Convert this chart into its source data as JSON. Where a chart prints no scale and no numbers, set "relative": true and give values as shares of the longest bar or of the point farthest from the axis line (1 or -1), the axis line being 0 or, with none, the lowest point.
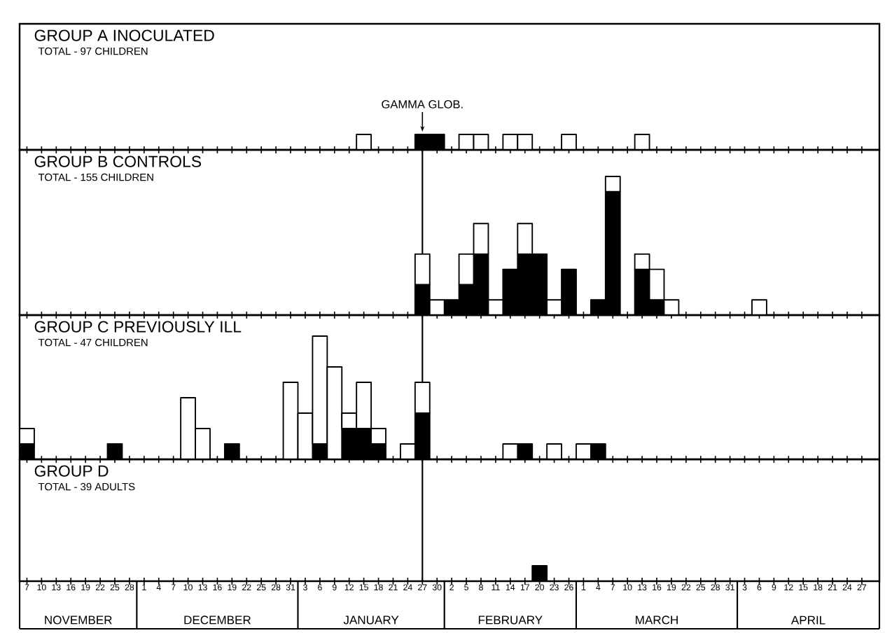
{
  "chart_data": [
    {
      "type": "bar",
      "stacked": true,
      "relative": true,
      "title": "GROUP A INOCULATED",
      "subtitle": "TOTAL - 97 CHILDREN",
      "tick_labels": false,
      "categories": [
        "7",
        "10",
        "13",
        "16",
        "19",
        "22",
        "25",
        "28",
        "1",
        "4",
        "7",
        "10",
        "13",
        "16",
        "19",
        "22",
        "25",
        "28",
        "31",
        "3",
        "6",
        "9",
        "12",
        "15",
        "18",
        "21",
        "24",
        "27",
        "30",
        "2",
        "5",
        "8",
        "11",
        "14",
        "17",
        "20",
        "23",
        "26",
        "1",
        "4",
        "7",
        "10",
        "13",
        "16",
        "19",
        "22",
        "25",
        "28",
        "31",
        "3",
        "6",
        "9",
        "12",
        "15",
        "18",
        "21",
        "24",
        "27"
      ],
      "series": [
        {
          "color": "#000000",
          "values": [
            null,
            null,
            null,
            null,
            null,
            null,
            null,
            null,
            null,
            null,
            null,
            null,
            null,
            null,
            null,
            null,
            null,
            null,
            null,
            null,
            null,
            null,
            null,
            null,
            null,
            null,
            null,
            1,
            1,
            null,
            null,
            null,
            null,
            null,
            null,
            null,
            null,
            null,
            null,
            null,
            null,
            null,
            null,
            null,
            null,
            null,
            null,
            null,
            null,
            null,
            null,
            null,
            null,
            null,
            null,
            null,
            null,
            null
          ]
        },
        {
          "color": "#ffffff",
          "values": [
            null,
            null,
            null,
            null,
            null,
            null,
            null,
            null,
            null,
            null,
            null,
            null,
            null,
            null,
            null,
            null,
            null,
            null,
            null,
            null,
            null,
            null,
            null,
            1,
            null,
            null,
            null,
            null,
            null,
            null,
            1,
            1,
            null,
            1,
            1,
            null,
            null,
            1,
            null,
            null,
            null,
            null,
            1,
            null,
            null,
            null,
            null,
            null,
            null,
            null,
            null,
            null,
            null,
            null,
            null,
            null,
            null,
            null
          ]
        }
      ],
      "annotations": [
        {
          "text": "GAMMA GLOB.",
          "x": "27",
          "y": 1
        }
      ]
    },
    {
      "type": "bar",
      "stacked": true,
      "relative": true,
      "title": "GROUP B CONTROLS",
      "subtitle": "TOTAL - 155 CHILDREN",
      "tick_labels": false,
      "categories": [
        "7",
        "10",
        "13",
        "16",
        "19",
        "22",
        "25",
        "28",
        "1",
        "4",
        "7",
        "10",
        "13",
        "16",
        "19",
        "22",
        "25",
        "28",
        "31",
        "3",
        "6",
        "9",
        "12",
        "15",
        "18",
        "21",
        "24",
        "27",
        "30",
        "2",
        "5",
        "8",
        "11",
        "14",
        "17",
        "20",
        "23",
        "26",
        "1",
        "4",
        "7",
        "10",
        "13",
        "16",
        "19",
        "22",
        "25",
        "28",
        "31",
        "3",
        "6",
        "9",
        "12",
        "15",
        "18",
        "21",
        "24",
        "27"
      ],
      "series": [
        {
          "color": "#000000",
          "values": [
            null,
            null,
            null,
            null,
            null,
            null,
            null,
            null,
            null,
            null,
            null,
            null,
            null,
            null,
            null,
            null,
            null,
            null,
            null,
            null,
            null,
            null,
            null,
            null,
            null,
            null,
            null,
            0.22,
            null,
            0.11,
            0.22,
            0.44,
            null,
            0.33,
            0.44,
            0.44,
            null,
            0.33,
            null,
            0.11,
            0.89,
            null,
            0.33,
            0.11,
            null,
            null,
            null,
            null,
            null,
            null,
            null,
            null,
            null,
            null,
            null,
            null,
            null,
            null
          ]
        },
        {
          "color": "#ffffff",
          "values": [
            null,
            null,
            null,
            null,
            null,
            null,
            null,
            null,
            null,
            null,
            null,
            null,
            null,
            null,
            null,
            null,
            null,
            null,
            null,
            null,
            null,
            null,
            null,
            null,
            null,
            null,
            null,
            0.22,
            0.11,
            null,
            0.22,
            0.22,
            0.11,
            null,
            0.22,
            null,
            0.11,
            null,
            null,
            null,
            0.11,
            null,
            0.11,
            0.22,
            0.11,
            null,
            null,
            null,
            null,
            null,
            0.11,
            null,
            null,
            null,
            null,
            null,
            null,
            null
          ]
        }
      ],
      "ref_lines": [
        {
          "axis": "x",
          "value": "27"
        }
      ]
    },
    {
      "type": "bar",
      "stacked": true,
      "relative": true,
      "title": "GROUP C PREVIOUSLY ILL",
      "subtitle": "TOTAL - 47 CHILDREN",
      "tick_labels": false,
      "categories": [
        "7",
        "10",
        "13",
        "16",
        "19",
        "22",
        "25",
        "28",
        "1",
        "4",
        "7",
        "10",
        "13",
        "16",
        "19",
        "22",
        "25",
        "28",
        "31",
        "3",
        "6",
        "9",
        "12",
        "15",
        "18",
        "21",
        "24",
        "27",
        "30",
        "2",
        "5",
        "8",
        "11",
        "14",
        "17",
        "20",
        "23",
        "26",
        "1",
        "4",
        "7",
        "10",
        "13",
        "16",
        "19",
        "22",
        "25",
        "28",
        "31",
        "3",
        "6",
        "9",
        "12",
        "15",
        "18",
        "21",
        "24",
        "27"
      ],
      "series": [
        {
          "color": "#000000",
          "values": [
            0.125,
            null,
            null,
            null,
            null,
            null,
            0.125,
            null,
            null,
            null,
            null,
            null,
            null,
            null,
            0.125,
            null,
            null,
            null,
            null,
            null,
            0.125,
            null,
            0.25,
            0.25,
            0.125,
            null,
            null,
            0.375,
            null,
            null,
            null,
            null,
            null,
            null,
            0.125,
            null,
            null,
            null,
            null,
            0.125,
            null,
            null,
            null,
            null,
            null,
            null,
            null,
            null,
            null,
            null,
            null,
            null,
            null,
            null,
            null,
            null,
            null,
            null
          ]
        },
        {
          "color": "#ffffff",
          "values": [
            0.125,
            null,
            null,
            null,
            null,
            null,
            null,
            null,
            null,
            null,
            null,
            0.5,
            0.25,
            null,
            null,
            null,
            null,
            null,
            0.625,
            0.375,
            0.875,
            0.75,
            0.125,
            0.375,
            0.125,
            null,
            0.125,
            0.25,
            null,
            null,
            null,
            null,
            null,
            0.125,
            null,
            null,
            0.125,
            null,
            0.125,
            null,
            null,
            null,
            null,
            null,
            null,
            null,
            null,
            null,
            null,
            null,
            null,
            null,
            null,
            null,
            null,
            null,
            null,
            null
          ]
        }
      ],
      "ref_lines": [
        {
          "axis": "x",
          "value": "27"
        }
      ]
    },
    {
      "type": "bar",
      "stacked": true,
      "relative": true,
      "title": "GROUP D",
      "subtitle": "TOTAL - 39 ADULTS",
      "tick_labels": "x",
      "categories": [
        "7",
        "10",
        "13",
        "16",
        "19",
        "22",
        "25",
        "28",
        "1",
        "4",
        "7",
        "10",
        "13",
        "16",
        "19",
        "22",
        "25",
        "28",
        "31",
        "3",
        "6",
        "9",
        "12",
        "15",
        "18",
        "21",
        "24",
        "27",
        "30",
        "2",
        "5",
        "8",
        "11",
        "14",
        "17",
        "20",
        "23",
        "26",
        "1",
        "4",
        "7",
        "10",
        "13",
        "16",
        "19",
        "22",
        "25",
        "28",
        "31",
        "3",
        "6",
        "9",
        "12",
        "15",
        "18",
        "21",
        "24",
        "27"
      ],
      "series": [
        {
          "color": "#000000",
          "values": [
            null,
            null,
            null,
            null,
            null,
            null,
            null,
            null,
            null,
            null,
            null,
            null,
            null,
            null,
            null,
            null,
            null,
            null,
            null,
            null,
            null,
            null,
            null,
            null,
            null,
            null,
            null,
            null,
            null,
            null,
            null,
            null,
            null,
            null,
            null,
            1,
            null,
            null,
            null,
            null,
            null,
            null,
            null,
            null,
            null,
            null,
            null,
            null,
            null,
            null,
            null,
            null,
            null,
            null,
            null,
            null,
            null,
            null
          ]
        }
      ],
      "ref_lines": [
        {
          "axis": "x",
          "value": "27"
        }
      ],
      "annotations": [
        "NOVEMBER",
        "DECEMBER",
        "JANUARY",
        "FEBRUARY",
        "MARCH",
        "APRIL"
      ]
    }
  ]
}
